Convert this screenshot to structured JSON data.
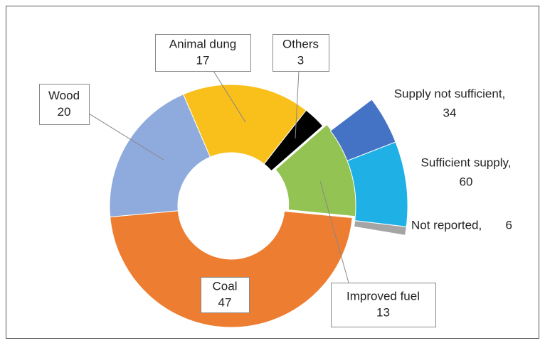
{
  "chart_data": {
    "type": "doughnut",
    "categories": [
      "Others",
      "Improved fuel",
      "Coal",
      "Wood",
      "Animal dung"
    ],
    "values": [
      3,
      13,
      47,
      20,
      17
    ],
    "colors": [
      "#000000",
      "#92c353",
      "#ed7d31",
      "#8faadc",
      "#f9bf1b"
    ],
    "breakdown": {
      "of": "Improved fuel",
      "categories": [
        "Supply not sufficient,",
        "Sufficient supply,",
        "Not reported,"
      ],
      "values": [
        34,
        60,
        6
      ],
      "colors": [
        "#4472c4",
        "#1fb0e6",
        "#a5a5a5"
      ]
    }
  }
}
